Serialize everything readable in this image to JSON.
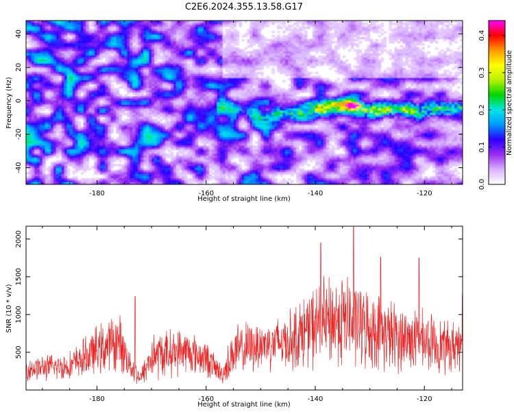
{
  "title": "C2E6.2024.355.13.58.G17",
  "chart_data": [
    {
      "type": "heatmap",
      "xlabel": "Height of straight line (km)",
      "ylabel": "Frequency (Hz)",
      "xlim": [
        -193,
        -113
      ],
      "ylim": [
        -50,
        48
      ],
      "x_ticks": [
        -180,
        -160,
        -140,
        -120
      ],
      "y_ticks": [
        -40,
        -20,
        0,
        20,
        40
      ],
      "colorbar": {
        "label": "Normalized spectral amplitude",
        "range": [
          0,
          0.44
        ],
        "ticks": [
          0.0,
          0.1,
          0.2,
          0.3,
          0.4
        ],
        "tick_labels": [
          "0.0",
          "0.1",
          "0.2",
          "0.3",
          "0.4"
        ],
        "colors": [
          "#ffffff",
          "#d9b3ff",
          "#9a2cf0",
          "#2a00ff",
          "#0098ff",
          "#00e6e6",
          "#00d800",
          "#b8f000",
          "#ffff00",
          "#ff9900",
          "#ff0000",
          "#ff00ff"
        ]
      },
      "ridge": {
        "description_points": [
          {
            "x": -156,
            "y": -3
          },
          {
            "x": -150,
            "y": -10
          },
          {
            "x": -146,
            "y": -8
          },
          {
            "x": -140,
            "y": -5
          },
          {
            "x": -134,
            "y": -3
          },
          {
            "x": -130,
            "y": -6
          },
          {
            "x": -125,
            "y": -5
          },
          {
            "x": -120,
            "y": -6
          },
          {
            "x": -114,
            "y": -4
          }
        ],
        "peak": {
          "x": -133,
          "y": -3,
          "value": 0.42
        }
      }
    },
    {
      "type": "line",
      "xlabel": "Height of straight line (km)",
      "ylabel": "SNR (10 * v/v)",
      "xlim": [
        -193,
        -113
      ],
      "ylim": [
        0,
        2170
      ],
      "x_ticks": [
        -180,
        -160,
        -140,
        -120
      ],
      "y_ticks": [
        500,
        1000,
        1500,
        2000
      ],
      "series": [
        {
          "color": "#ee2222",
          "envelope": [
            {
              "x": -193,
              "mean": 280,
              "amp": 180
            },
            {
              "x": -185,
              "mean": 320,
              "amp": 220
            },
            {
              "x": -180,
              "mean": 520,
              "amp": 380
            },
            {
              "x": -176,
              "mean": 650,
              "amp": 450
            },
            {
              "x": -174,
              "mean": 350,
              "amp": 250
            },
            {
              "x": -172,
              "mean": 150,
              "amp": 120
            },
            {
              "x": -170,
              "mean": 450,
              "amp": 380
            },
            {
              "x": -164,
              "mean": 520,
              "amp": 350
            },
            {
              "x": -160,
              "mean": 420,
              "amp": 280
            },
            {
              "x": -157,
              "mean": 200,
              "amp": 150
            },
            {
              "x": -155,
              "mean": 500,
              "amp": 420
            },
            {
              "x": -150,
              "mean": 600,
              "amp": 380
            },
            {
              "x": -145,
              "mean": 650,
              "amp": 450
            },
            {
              "x": -140,
              "mean": 850,
              "amp": 650
            },
            {
              "x": -135,
              "mean": 950,
              "amp": 750
            },
            {
              "x": -130,
              "mean": 800,
              "amp": 600
            },
            {
              "x": -125,
              "mean": 700,
              "amp": 550
            },
            {
              "x": -120,
              "mean": 650,
              "amp": 450
            },
            {
              "x": -115,
              "mean": 550,
              "amp": 400
            },
            {
              "x": -113,
              "mean": 700,
              "amp": 450
            }
          ],
          "peaks": [
            {
              "x": -173,
              "y": 1240
            },
            {
              "x": -139,
              "y": 1950
            },
            {
              "x": -133,
              "y": 2160
            },
            {
              "x": -128,
              "y": 1760
            },
            {
              "x": -121,
              "y": 1750
            },
            {
              "x": -113,
              "y": 1270
            }
          ]
        }
      ]
    }
  ]
}
